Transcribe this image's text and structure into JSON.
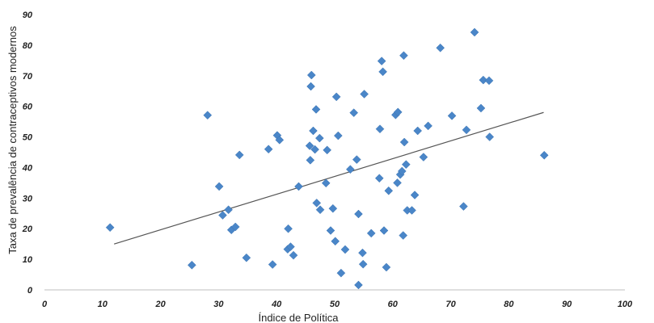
{
  "chart_data": {
    "type": "scatter",
    "title": "",
    "xlabel": "Índice de Política",
    "ylabel": "Taxa de prevalência de contraceptivos modernos",
    "xlim": [
      0,
      100
    ],
    "ylim": [
      0,
      90
    ],
    "x_ticks": [
      0,
      10,
      20,
      30,
      40,
      50,
      60,
      70,
      80,
      90,
      100
    ],
    "y_ticks": [
      0,
      10,
      20,
      30,
      40,
      50,
      60,
      70,
      80,
      90
    ],
    "grid": false,
    "legend": "none",
    "marker_color": "#4a86c8",
    "trendline_color": "#555555",
    "trendline": {
      "x": [
        12,
        86
      ],
      "y": [
        15,
        58
      ]
    },
    "points": [
      {
        "x": 11.3,
        "y": 20.4
      },
      {
        "x": 25.4,
        "y": 8.1
      },
      {
        "x": 28.1,
        "y": 57.1
      },
      {
        "x": 30.1,
        "y": 33.8
      },
      {
        "x": 30.7,
        "y": 24.4
      },
      {
        "x": 31.7,
        "y": 26.2
      },
      {
        "x": 32.2,
        "y": 19.6
      },
      {
        "x": 32.9,
        "y": 20.6
      },
      {
        "x": 33.6,
        "y": 44.1
      },
      {
        "x": 34.8,
        "y": 10.5
      },
      {
        "x": 38.6,
        "y": 46.0
      },
      {
        "x": 39.3,
        "y": 8.3
      },
      {
        "x": 40.1,
        "y": 50.5
      },
      {
        "x": 40.5,
        "y": 49.0
      },
      {
        "x": 41.9,
        "y": 13.3
      },
      {
        "x": 42.0,
        "y": 20.0
      },
      {
        "x": 42.4,
        "y": 14.1
      },
      {
        "x": 42.9,
        "y": 11.3
      },
      {
        "x": 43.8,
        "y": 33.8
      },
      {
        "x": 45.7,
        "y": 47.1
      },
      {
        "x": 45.8,
        "y": 42.4
      },
      {
        "x": 45.9,
        "y": 66.5
      },
      {
        "x": 46.0,
        "y": 70.2
      },
      {
        "x": 46.3,
        "y": 52.0
      },
      {
        "x": 46.6,
        "y": 45.9
      },
      {
        "x": 46.8,
        "y": 59.0
      },
      {
        "x": 46.9,
        "y": 28.4
      },
      {
        "x": 47.4,
        "y": 49.6
      },
      {
        "x": 47.5,
        "y": 26.2
      },
      {
        "x": 48.5,
        "y": 34.9
      },
      {
        "x": 48.7,
        "y": 45.7
      },
      {
        "x": 49.3,
        "y": 19.4
      },
      {
        "x": 49.7,
        "y": 26.6
      },
      {
        "x": 50.1,
        "y": 15.9
      },
      {
        "x": 50.3,
        "y": 63.1
      },
      {
        "x": 50.6,
        "y": 50.4
      },
      {
        "x": 51.1,
        "y": 5.5
      },
      {
        "x": 51.8,
        "y": 13.2
      },
      {
        "x": 52.7,
        "y": 39.4
      },
      {
        "x": 53.3,
        "y": 57.9
      },
      {
        "x": 53.8,
        "y": 42.6
      },
      {
        "x": 54.1,
        "y": 1.6
      },
      {
        "x": 54.1,
        "y": 24.8
      },
      {
        "x": 54.8,
        "y": 12.1
      },
      {
        "x": 54.9,
        "y": 8.4
      },
      {
        "x": 55.1,
        "y": 64.0
      },
      {
        "x": 56.3,
        "y": 18.5
      },
      {
        "x": 57.7,
        "y": 36.5
      },
      {
        "x": 57.8,
        "y": 52.6
      },
      {
        "x": 58.1,
        "y": 74.8
      },
      {
        "x": 58.3,
        "y": 71.3
      },
      {
        "x": 58.5,
        "y": 19.4
      },
      {
        "x": 58.9,
        "y": 7.4
      },
      {
        "x": 59.3,
        "y": 32.4
      },
      {
        "x": 60.5,
        "y": 57.2
      },
      {
        "x": 60.8,
        "y": 35.0
      },
      {
        "x": 60.9,
        "y": 58.1
      },
      {
        "x": 61.3,
        "y": 37.7
      },
      {
        "x": 61.6,
        "y": 38.8
      },
      {
        "x": 61.8,
        "y": 17.8
      },
      {
        "x": 61.9,
        "y": 76.6
      },
      {
        "x": 62.0,
        "y": 48.3
      },
      {
        "x": 62.3,
        "y": 41.0
      },
      {
        "x": 62.5,
        "y": 26.0
      },
      {
        "x": 63.3,
        "y": 26.0
      },
      {
        "x": 63.8,
        "y": 31.0
      },
      {
        "x": 64.3,
        "y": 52.0
      },
      {
        "x": 65.3,
        "y": 43.4
      },
      {
        "x": 66.1,
        "y": 53.6
      },
      {
        "x": 68.2,
        "y": 79.1
      },
      {
        "x": 70.2,
        "y": 56.9
      },
      {
        "x": 72.2,
        "y": 27.3
      },
      {
        "x": 72.7,
        "y": 52.3
      },
      {
        "x": 74.1,
        "y": 84.2
      },
      {
        "x": 75.2,
        "y": 59.4
      },
      {
        "x": 75.6,
        "y": 68.6
      },
      {
        "x": 76.6,
        "y": 68.4
      },
      {
        "x": 76.7,
        "y": 50.0
      },
      {
        "x": 86.1,
        "y": 44.0
      }
    ]
  }
}
